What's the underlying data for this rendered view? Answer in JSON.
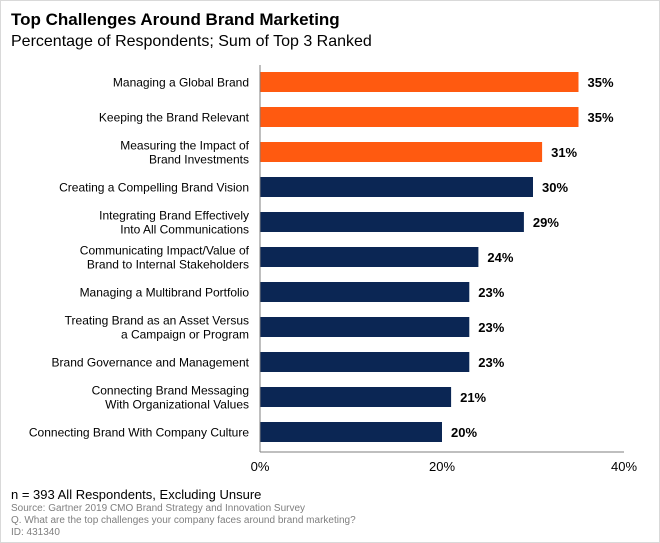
{
  "title": "Top Challenges Around Brand Marketing",
  "subtitle": "Percentage of Respondents; Sum of Top 3 Ranked",
  "colors": {
    "highlight": "#FF5A10",
    "default": "#0B2654",
    "axis": "#7f7f7f"
  },
  "chart_data": {
    "type": "bar",
    "orientation": "horizontal",
    "categories": [
      [
        "Managing a Global Brand"
      ],
      [
        "Keeping the Brand Relevant"
      ],
      [
        "Measuring the Impact of",
        "Brand Investments"
      ],
      [
        "Creating a Compelling Brand Vision"
      ],
      [
        "Integrating Brand Effectively",
        "Into All Communications"
      ],
      [
        "Communicating Impact/Value of",
        "Brand to Internal Stakeholders"
      ],
      [
        "Managing a Multibrand Portfolio"
      ],
      [
        "Treating Brand as an Asset Versus",
        "a Campaign or Program"
      ],
      [
        "Brand Governance and Management"
      ],
      [
        "Connecting Brand Messaging",
        "With Organizational Values"
      ],
      [
        "Connecting Brand With Company Culture"
      ]
    ],
    "values": [
      35,
      35,
      31,
      30,
      29,
      24,
      23,
      23,
      23,
      21,
      20
    ],
    "data_labels": [
      "35%",
      "35%",
      "31%",
      "30%",
      "29%",
      "24%",
      "23%",
      "23%",
      "23%",
      "21%",
      "20%"
    ],
    "highlighted": [
      true,
      true,
      true,
      false,
      false,
      false,
      false,
      false,
      false,
      false,
      false
    ],
    "xlim": [
      0,
      40
    ],
    "x_ticks": [
      0,
      20,
      40
    ],
    "x_tick_labels": [
      "0%",
      "20%",
      "40%"
    ],
    "grid": false,
    "legend": "none"
  },
  "footer": {
    "n": "n = 393 All Respondents, Excluding Unsure",
    "source": "Source: Gartner 2019 CMO Brand Strategy and Innovation Survey",
    "question": "Q. What are the top challenges your company faces around brand marketing?",
    "id": "ID: 431340"
  }
}
